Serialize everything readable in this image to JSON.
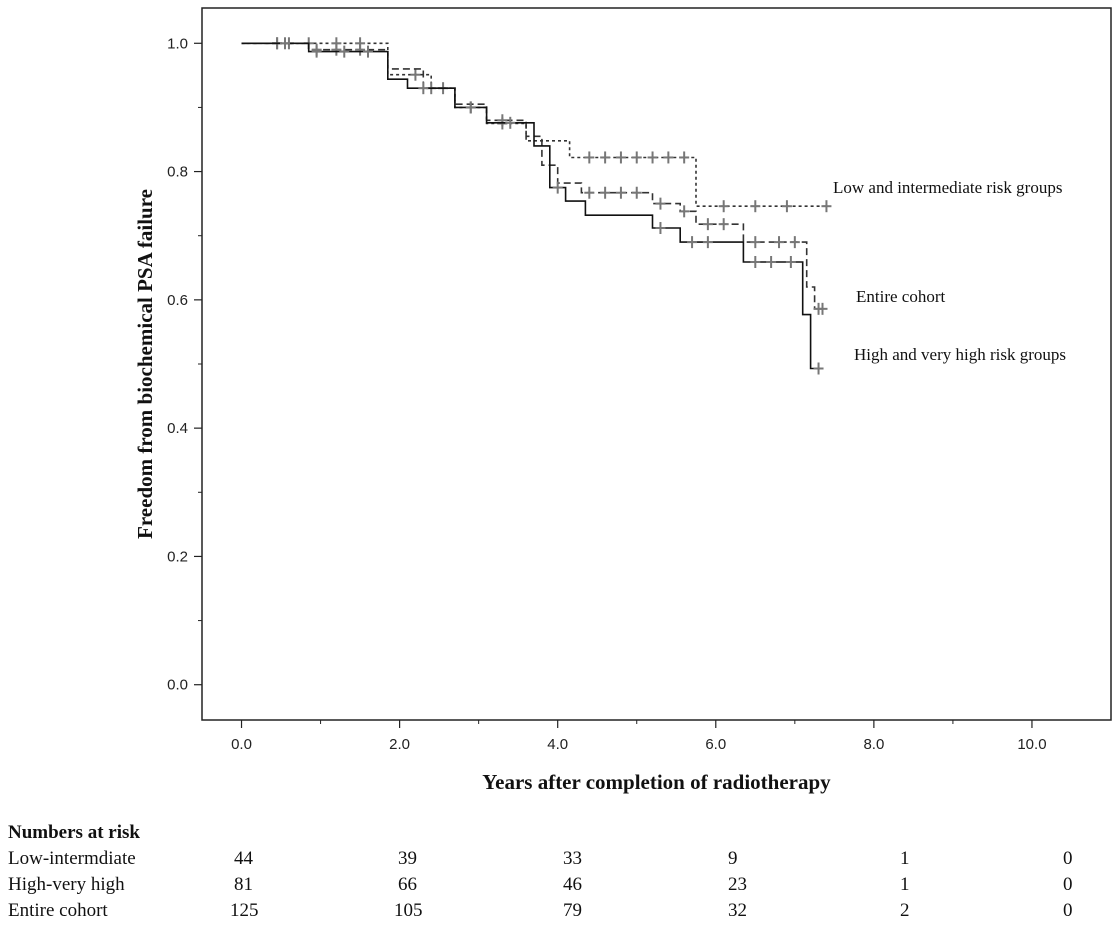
{
  "chart_data": {
    "type": "line",
    "subtype": "kaplan-meier",
    "xlabel": "Years after completion of radiotherapy",
    "ylabel": "Freedom from biochemical PSA failure",
    "xlim": [
      -0.5,
      11.0
    ],
    "ylim": [
      -0.055,
      1.055
    ],
    "x_ticks": [
      0,
      2,
      4,
      6,
      8,
      10
    ],
    "x_tick_labels": [
      "0.0",
      "2.0",
      "4.0",
      "6.0",
      "8.0",
      "10.0"
    ],
    "x_minor_ticks": [
      1,
      3,
      5,
      7,
      9
    ],
    "y_ticks": [
      0,
      0.2,
      0.4,
      0.6,
      0.8,
      1.0
    ],
    "y_tick_labels": [
      "0.0",
      "0.2",
      "0.4",
      "0.6",
      "0.8",
      "1.0"
    ],
    "y_minor_ticks": [
      0.1,
      0.3,
      0.5,
      0.7,
      0.9
    ],
    "series": [
      {
        "name": "Low and intermediate risk groups",
        "style": "dotted",
        "label": "Low and intermediate risk groups",
        "steps": [
          [
            0,
            1.0
          ],
          [
            1.85,
            1.0
          ],
          [
            1.85,
            0.951
          ],
          [
            2.4,
            0.951
          ],
          [
            2.4,
            0.93
          ],
          [
            2.7,
            0.93
          ],
          [
            2.7,
            0.9
          ],
          [
            3.1,
            0.9
          ],
          [
            3.1,
            0.875
          ],
          [
            3.6,
            0.875
          ],
          [
            3.6,
            0.848
          ],
          [
            4.15,
            0.848
          ],
          [
            4.15,
            0.822
          ],
          [
            5.75,
            0.822
          ],
          [
            5.75,
            0.746
          ],
          [
            7.4,
            0.746
          ]
        ],
        "censored": [
          [
            0.45,
            1.0
          ],
          [
            0.6,
            1.0
          ],
          [
            0.85,
            1.0
          ],
          [
            1.2,
            1.0
          ],
          [
            1.5,
            1.0
          ],
          [
            2.2,
            0.951
          ],
          [
            2.55,
            0.93
          ],
          [
            2.9,
            0.9
          ],
          [
            3.3,
            0.875
          ],
          [
            4.4,
            0.822
          ],
          [
            4.6,
            0.822
          ],
          [
            4.8,
            0.822
          ],
          [
            5.0,
            0.822
          ],
          [
            5.2,
            0.822
          ],
          [
            5.4,
            0.822
          ],
          [
            5.6,
            0.822
          ],
          [
            6.1,
            0.746
          ],
          [
            6.5,
            0.746
          ],
          [
            6.9,
            0.746
          ],
          [
            7.4,
            0.746
          ]
        ]
      },
      {
        "name": "Entire cohort",
        "style": "dashed",
        "label": "Entire cohort",
        "steps": [
          [
            0,
            1.0
          ],
          [
            0.85,
            1.0
          ],
          [
            0.85,
            0.99
          ],
          [
            1.85,
            0.99
          ],
          [
            1.85,
            0.96
          ],
          [
            2.3,
            0.96
          ],
          [
            2.3,
            0.93
          ],
          [
            2.7,
            0.93
          ],
          [
            2.7,
            0.905
          ],
          [
            3.1,
            0.905
          ],
          [
            3.1,
            0.88
          ],
          [
            3.6,
            0.88
          ],
          [
            3.6,
            0.855
          ],
          [
            3.8,
            0.855
          ],
          [
            3.8,
            0.81
          ],
          [
            4.0,
            0.81
          ],
          [
            4.0,
            0.782
          ],
          [
            4.3,
            0.782
          ],
          [
            4.3,
            0.767
          ],
          [
            5.2,
            0.767
          ],
          [
            5.2,
            0.75
          ],
          [
            5.55,
            0.75
          ],
          [
            5.55,
            0.738
          ],
          [
            5.75,
            0.738
          ],
          [
            5.75,
            0.718
          ],
          [
            6.35,
            0.718
          ],
          [
            6.35,
            0.69
          ],
          [
            7.15,
            0.69
          ],
          [
            7.15,
            0.62
          ],
          [
            7.25,
            0.62
          ],
          [
            7.25,
            0.586
          ],
          [
            7.35,
            0.586
          ]
        ],
        "censored": [
          [
            0.45,
            1.0
          ],
          [
            0.95,
            0.99
          ],
          [
            1.2,
            0.99
          ],
          [
            1.5,
            0.99
          ],
          [
            2.4,
            0.93
          ],
          [
            3.3,
            0.88
          ],
          [
            4.4,
            0.767
          ],
          [
            4.6,
            0.767
          ],
          [
            4.8,
            0.767
          ],
          [
            5.0,
            0.767
          ],
          [
            5.3,
            0.75
          ],
          [
            5.6,
            0.738
          ],
          [
            5.9,
            0.718
          ],
          [
            6.1,
            0.718
          ],
          [
            6.5,
            0.69
          ],
          [
            6.8,
            0.69
          ],
          [
            7.0,
            0.69
          ],
          [
            7.3,
            0.586
          ],
          [
            7.35,
            0.586
          ]
        ]
      },
      {
        "name": "High and very high risk groups",
        "style": "solid",
        "label": "High and very high risk groups",
        "steps": [
          [
            0,
            1.0
          ],
          [
            0.85,
            1.0
          ],
          [
            0.85,
            0.987
          ],
          [
            1.85,
            0.987
          ],
          [
            1.85,
            0.944
          ],
          [
            2.1,
            0.944
          ],
          [
            2.1,
            0.93
          ],
          [
            2.7,
            0.93
          ],
          [
            2.7,
            0.9
          ],
          [
            3.1,
            0.9
          ],
          [
            3.1,
            0.876
          ],
          [
            3.7,
            0.876
          ],
          [
            3.7,
            0.84
          ],
          [
            3.9,
            0.84
          ],
          [
            3.9,
            0.775
          ],
          [
            4.1,
            0.775
          ],
          [
            4.1,
            0.754
          ],
          [
            4.35,
            0.754
          ],
          [
            4.35,
            0.732
          ],
          [
            5.2,
            0.732
          ],
          [
            5.2,
            0.712
          ],
          [
            5.55,
            0.712
          ],
          [
            5.55,
            0.69
          ],
          [
            6.35,
            0.69
          ],
          [
            6.35,
            0.659
          ],
          [
            7.1,
            0.659
          ],
          [
            7.1,
            0.577
          ],
          [
            7.2,
            0.577
          ],
          [
            7.2,
            0.493
          ],
          [
            7.35,
            0.493
          ]
        ],
        "censored": [
          [
            0.55,
            1.0
          ],
          [
            0.95,
            0.987
          ],
          [
            1.3,
            0.987
          ],
          [
            1.6,
            0.987
          ],
          [
            2.3,
            0.93
          ],
          [
            2.9,
            0.9
          ],
          [
            3.4,
            0.876
          ],
          [
            4.0,
            0.775
          ],
          [
            5.3,
            0.712
          ],
          [
            5.7,
            0.69
          ],
          [
            5.9,
            0.69
          ],
          [
            6.5,
            0.659
          ],
          [
            6.7,
            0.659
          ],
          [
            6.95,
            0.659
          ],
          [
            7.3,
            0.493
          ]
        ]
      }
    ]
  },
  "risk_table": {
    "title": "Numbers at risk",
    "rows": [
      {
        "label": "Low-intermdiate",
        "values": [
          "44",
          "39",
          "33",
          "9",
          "1",
          "0"
        ]
      },
      {
        "label": "High-very high",
        "values": [
          "81",
          "66",
          "46",
          "23",
          "1",
          "0"
        ]
      },
      {
        "label": "Entire cohort",
        "values": [
          "125",
          "105",
          "79",
          "32",
          "2",
          "0"
        ]
      }
    ]
  }
}
